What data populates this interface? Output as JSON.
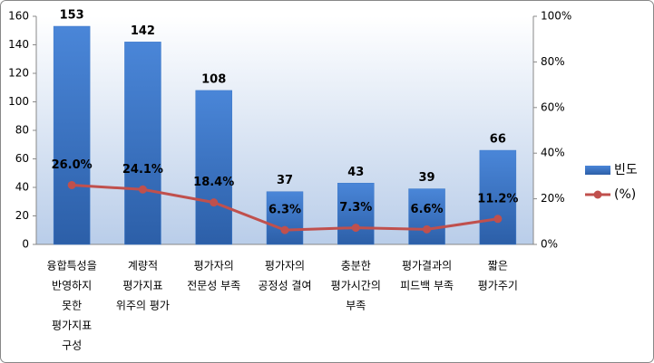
{
  "chart_data": {
    "type": "bar_line",
    "categories": [
      [
        "융합특성을",
        "반영하지",
        "못한",
        "평가지표",
        "구성"
      ],
      [
        "계량적",
        "평가지표",
        "위주의 평가"
      ],
      [
        "평가자의",
        "전문성 부족"
      ],
      [
        "평가자의",
        "공정성 결여"
      ],
      [
        "충분한",
        "평가시간의",
        "부족"
      ],
      [
        "평가결과의",
        "피드백 부족"
      ],
      [
        "짧은",
        "평가주기"
      ]
    ],
    "series": [
      {
        "name": "빈도",
        "type": "bar",
        "color": "#3c78c8",
        "values": [
          153,
          142,
          108,
          37,
          43,
          39,
          66
        ]
      },
      {
        "name": "(%)",
        "type": "line",
        "axis": "y2",
        "color": "#c0504d",
        "values": [
          26.0,
          24.1,
          18.4,
          6.3,
          7.3,
          6.6,
          11.2
        ],
        "value_labels": [
          "26.0%",
          "24.1%",
          "18.4%",
          "6.3%",
          "7.3%",
          "6.6%",
          "11.2%"
        ]
      }
    ],
    "ylim": [
      0,
      160
    ],
    "yticks": [
      0,
      20,
      40,
      60,
      80,
      100,
      120,
      140,
      160
    ],
    "y2lim": [
      0,
      100
    ],
    "y2ticks": [
      {
        "value": 0,
        "label": "0%"
      },
      {
        "value": 20,
        "label": "20%"
      },
      {
        "value": 40,
        "label": "40%"
      },
      {
        "value": 60,
        "label": "60%"
      },
      {
        "value": 80,
        "label": "80%"
      },
      {
        "value": 100,
        "label": "100%"
      }
    ],
    "legend": "right"
  }
}
